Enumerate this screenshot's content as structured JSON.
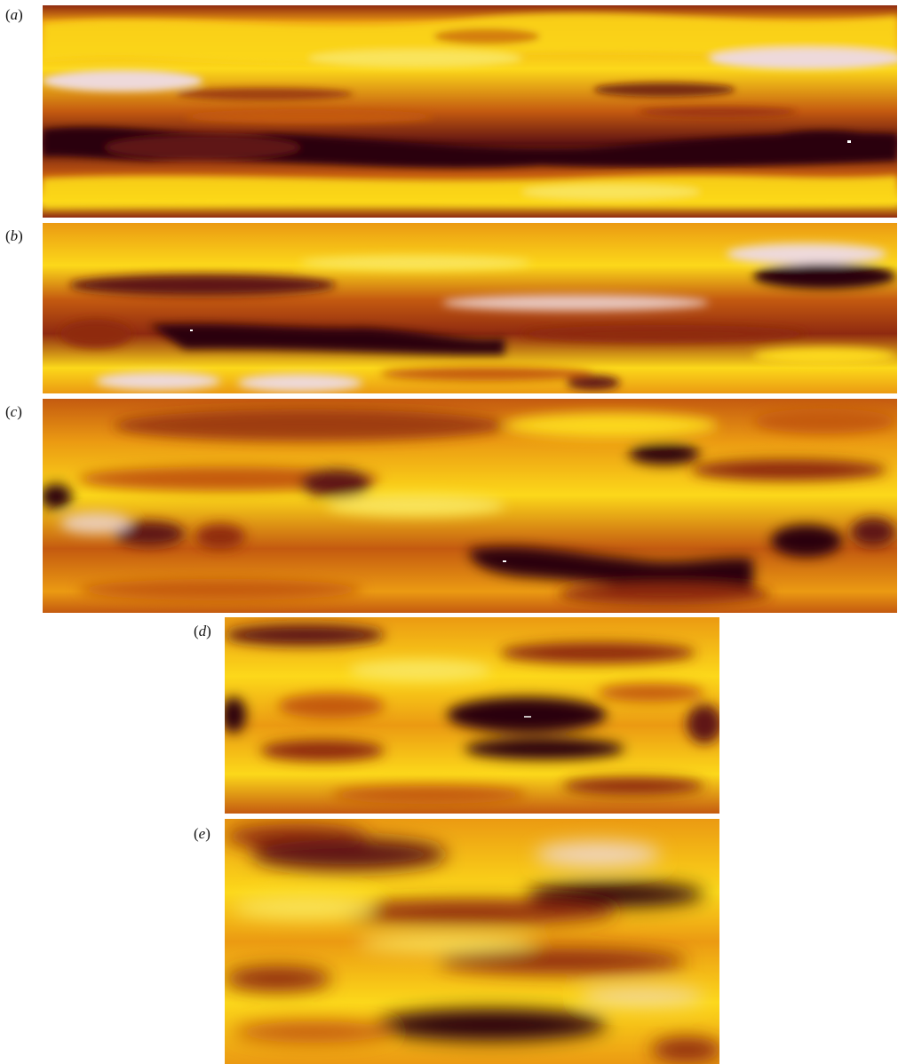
{
  "panels": [
    {
      "id": "a",
      "label": "a"
    },
    {
      "id": "b",
      "label": "b"
    },
    {
      "id": "c",
      "label": "c"
    },
    {
      "id": "d",
      "label": "d"
    },
    {
      "id": "e",
      "label": "e"
    }
  ],
  "colormap": [
    "#2a0508",
    "#5e1212",
    "#8f2a10",
    "#c45a10",
    "#eb9a12",
    "#fcd81a",
    "#f9e45c",
    "#eed9da"
  ]
}
